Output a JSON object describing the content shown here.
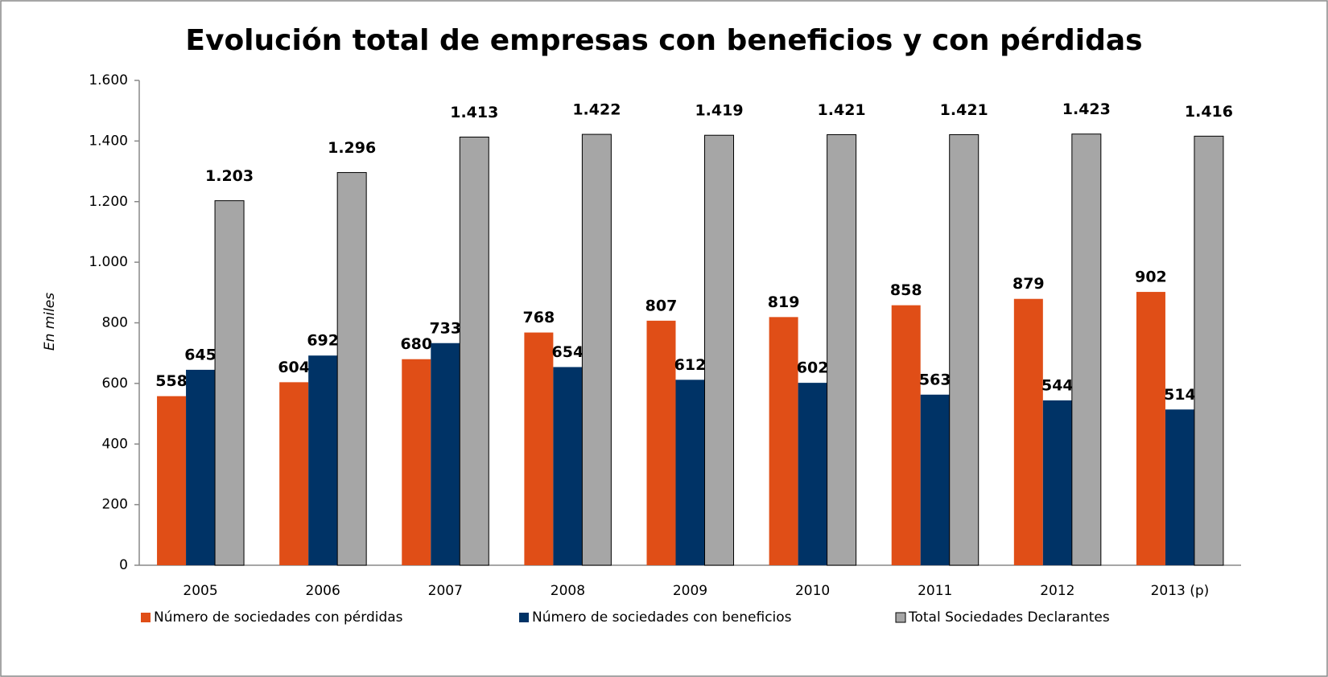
{
  "chart_data": {
    "type": "bar",
    "title": "Evolución total de empresas con beneficios y con pérdidas",
    "y_label": "En miles",
    "categories": [
      "2005",
      "2006",
      "2007",
      "2008",
      "2009",
      "2010",
      "2011",
      "2012",
      "2013 (p)"
    ],
    "series": [
      {
        "name": "Número de sociedades con pérdidas",
        "color": "#E04E17",
        "values": [
          558,
          604,
          680,
          768,
          807,
          819,
          858,
          879,
          902
        ]
      },
      {
        "name": "Número de sociedades con beneficios",
        "color": "#003366",
        "values": [
          645,
          692,
          733,
          654,
          612,
          602,
          563,
          544,
          514
        ]
      },
      {
        "name": "Total Sociedades Declarantes",
        "color": "#A6A6A6",
        "values": [
          1203,
          1296,
          1413,
          1422,
          1419,
          1421,
          1421,
          1423,
          1416
        ],
        "value_labels": [
          "1.203",
          "1.296",
          "1.413",
          "1.422",
          "1.419",
          "1.421",
          "1.421",
          "1.423",
          "1.416"
        ]
      }
    ],
    "ylim": [
      0,
      1600
    ],
    "yticks": [
      0,
      200,
      400,
      600,
      800,
      {
        "value": 1000,
        "label": "1.000"
      },
      {
        "value": 1200,
        "label": "1.200"
      },
      {
        "value": 1400,
        "label": "1.400"
      },
      {
        "value": 1600,
        "label": "1.600"
      }
    ],
    "grid": false,
    "legend": "bottom"
  }
}
